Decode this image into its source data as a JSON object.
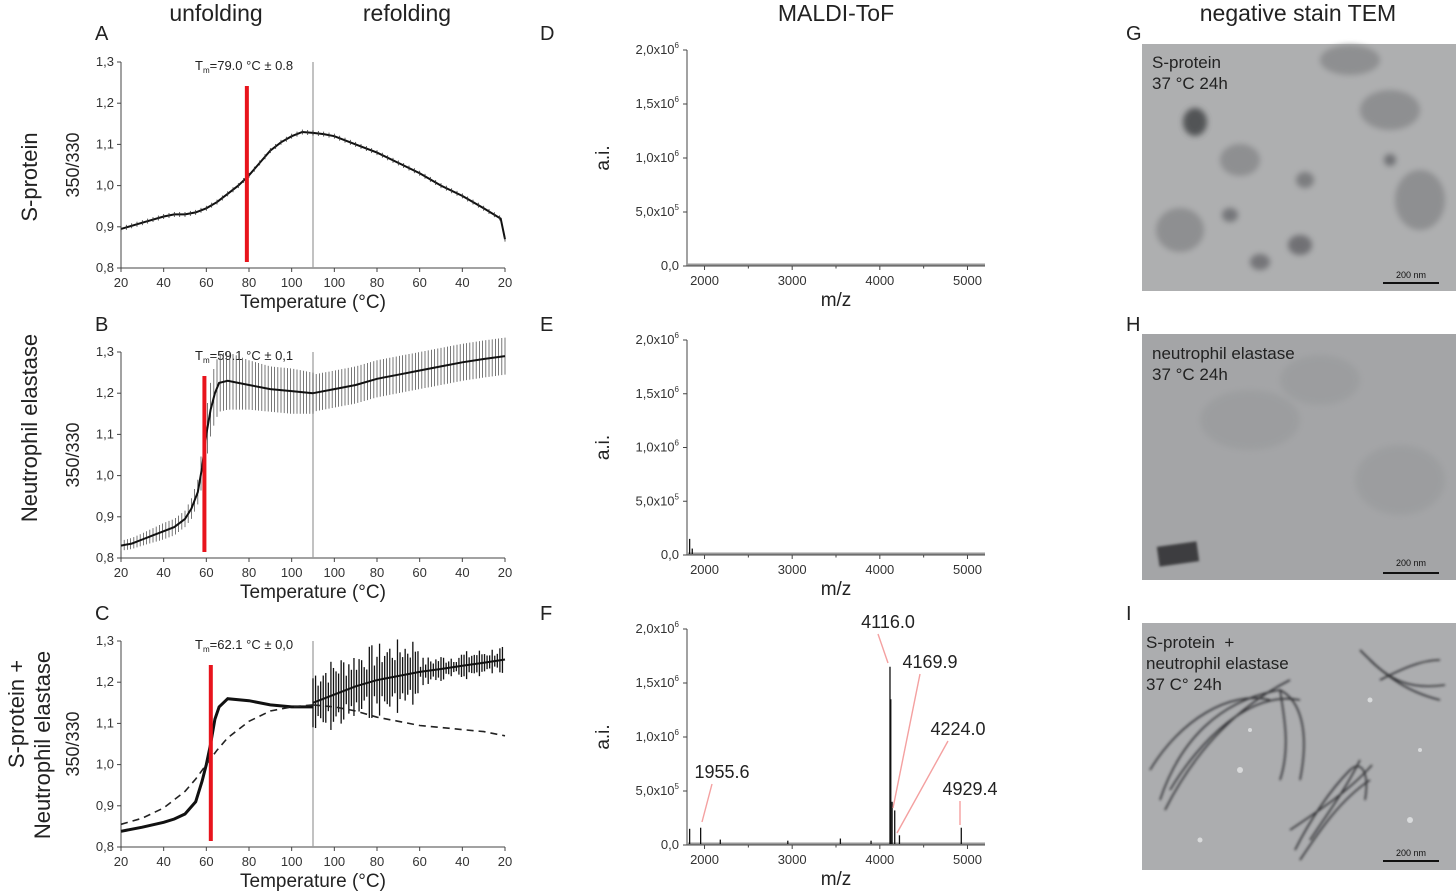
{
  "headers": {
    "unfolding": "unfolding",
    "refolding": "refolding",
    "maldi": "MALDI-ToF",
    "tem": "negative stain TEM"
  },
  "row_labels": [
    "S-protein",
    "Neutrophil elastase",
    "S-protein +",
    "Neutrophil elastase"
  ],
  "panel_letters": [
    "A",
    "B",
    "C",
    "D",
    "E",
    "F",
    "G",
    "H",
    "I"
  ],
  "colors": {
    "tm_line": "#e8141c",
    "trace": "#111111",
    "peak_line": "#f4a0a0",
    "divider": "#9a9a9a"
  },
  "chart_data": [
    {
      "panel": "A",
      "type": "line",
      "ylabel": "350/330",
      "xlabel": "Temperature (°C)",
      "ylim": [
        0.8,
        1.3
      ],
      "yticks": [
        "0,8",
        "0,9",
        "1,0",
        "1,1",
        "1,2",
        "1,3"
      ],
      "xticks": [
        "20",
        "40",
        "60",
        "80",
        "100",
        "100",
        "80",
        "60",
        "40",
        "20"
      ],
      "tm_label_main": "T",
      "tm_label_sub": "m",
      "tm_label_rest": "=79.0  °C ± 0.8",
      "tm": 79.0,
      "unfolding": {
        "x": [
          20,
          30,
          40,
          45,
          50,
          55,
          60,
          65,
          70,
          75,
          80,
          85,
          90,
          95,
          100,
          105,
          110
        ],
        "y": [
          0.895,
          0.91,
          0.925,
          0.93,
          0.93,
          0.935,
          0.945,
          0.96,
          0.98,
          1.0,
          1.025,
          1.055,
          1.085,
          1.105,
          1.12,
          1.13,
          1.128
        ]
      },
      "refolding": {
        "x": [
          110,
          105,
          100,
          90,
          80,
          70,
          60,
          50,
          40,
          30,
          22,
          20
        ],
        "y": [
          1.128,
          1.125,
          1.12,
          1.1,
          1.08,
          1.055,
          1.03,
          1.0,
          0.975,
          0.945,
          0.92,
          0.87
        ]
      },
      "error": 0.006
    },
    {
      "panel": "B",
      "type": "line",
      "ylabel": "350/330",
      "xlabel": "Temperature (°C)",
      "ylim": [
        0.8,
        1.3
      ],
      "yticks": [
        "0,8",
        "0,9",
        "1,0",
        "1,1",
        "1,2",
        "1,3"
      ],
      "xticks": [
        "20",
        "40",
        "60",
        "80",
        "100",
        "100",
        "80",
        "60",
        "40",
        "20"
      ],
      "tm_label_main": "T",
      "tm_label_sub": "m",
      "tm_label_rest": "=59.1  °C ± 0,1",
      "tm": 59.1,
      "unfolding": {
        "x": [
          20,
          25,
          30,
          35,
          40,
          45,
          50,
          53,
          56,
          58,
          60,
          62,
          64,
          66,
          70,
          80,
          90,
          100,
          110
        ],
        "y": [
          0.83,
          0.835,
          0.845,
          0.855,
          0.865,
          0.875,
          0.895,
          0.92,
          0.96,
          1.02,
          1.1,
          1.16,
          1.2,
          1.225,
          1.23,
          1.22,
          1.21,
          1.205,
          1.2
        ]
      },
      "unfolding_error": {
        "x": [
          20,
          30,
          40,
          50,
          56,
          60,
          64,
          70,
          80,
          90,
          100,
          110
        ],
        "e": [
          0.012,
          0.015,
          0.02,
          0.02,
          0.03,
          0.06,
          0.07,
          0.07,
          0.06,
          0.055,
          0.055,
          0.05
        ]
      },
      "refolding": {
        "x": [
          110,
          100,
          90,
          80,
          70,
          60,
          50,
          40,
          30,
          20
        ],
        "y": [
          1.2,
          1.21,
          1.22,
          1.235,
          1.245,
          1.255,
          1.265,
          1.275,
          1.283,
          1.29
        ]
      },
      "refolding_error": 0.045
    },
    {
      "panel": "C",
      "type": "line",
      "ylabel": "350/330",
      "xlabel": "Temperature (°C)",
      "ylim": [
        0.8,
        1.3
      ],
      "yticks": [
        "0,8",
        "0,9",
        "1,0",
        "1,1",
        "1,2",
        "1,3"
      ],
      "xticks": [
        "20",
        "40",
        "60",
        "80",
        "100",
        "100",
        "80",
        "60",
        "40",
        "20"
      ],
      "tm_label_main": "T",
      "tm_label_sub": "m",
      "tm_label_rest": "=62.1  °C ± 0,0",
      "tm": 62.1,
      "unfolding": {
        "x": [
          20,
          30,
          40,
          45,
          50,
          55,
          58,
          60,
          62,
          64,
          66,
          68,
          70,
          80,
          90,
          100,
          110
        ],
        "y": [
          0.838,
          0.848,
          0.86,
          0.868,
          0.88,
          0.91,
          0.96,
          1.0,
          1.05,
          1.11,
          1.14,
          1.15,
          1.16,
          1.155,
          1.145,
          1.14,
          1.14
        ]
      },
      "refolding": {
        "x": [
          110,
          100,
          90,
          80,
          70,
          60,
          50,
          40,
          30,
          20
        ],
        "y": [
          1.15,
          1.17,
          1.19,
          1.205,
          1.215,
          1.225,
          1.232,
          1.24,
          1.247,
          1.255
        ]
      },
      "dashed_unfolding": {
        "x": [
          20,
          30,
          40,
          50,
          55,
          60,
          65,
          70,
          80,
          90,
          100,
          110
        ],
        "y": [
          0.855,
          0.87,
          0.895,
          0.935,
          0.965,
          1.0,
          1.035,
          1.065,
          1.105,
          1.13,
          1.14,
          1.145
        ]
      },
      "dashed_refolding": {
        "x": [
          110,
          100,
          90,
          80,
          70,
          60,
          50,
          40,
          30,
          20
        ],
        "y": [
          1.145,
          1.14,
          1.13,
          1.115,
          1.105,
          1.095,
          1.09,
          1.085,
          1.08,
          1.07
        ]
      }
    },
    {
      "panel": "D",
      "type": "line",
      "ylabel": "a.i.",
      "xlabel": "m/z",
      "xlim": [
        1800,
        5200
      ],
      "ylim": [
        0,
        2000000
      ],
      "xticks": [
        2000,
        3000,
        4000,
        5000
      ],
      "yticks": [
        0,
        500000,
        1000000,
        1500000,
        2000000
      ],
      "ytick_mantissa": [
        "0,0",
        "5,0x10",
        "1,0x10",
        "1,5x10",
        "2,0x10"
      ],
      "ytick_exp": [
        "",
        "5",
        "6",
        "6",
        "6"
      ],
      "peaks": [],
      "peak_labels": []
    },
    {
      "panel": "E",
      "type": "line",
      "ylabel": "a.i.",
      "xlabel": "m/z",
      "xlim": [
        1800,
        5200
      ],
      "ylim": [
        0,
        2000000
      ],
      "xticks": [
        2000,
        3000,
        4000,
        5000
      ],
      "yticks": [
        0,
        500000,
        1000000,
        1500000,
        2000000
      ],
      "ytick_mantissa": [
        "0,0",
        "5,0x10",
        "1,0x10",
        "1,5x10",
        "2,0x10"
      ],
      "ytick_exp": [
        "",
        "5",
        "6",
        "6",
        "6"
      ],
      "peaks": [
        {
          "x": 1830,
          "y": 150000
        },
        {
          "x": 1860,
          "y": 60000
        }
      ],
      "peak_labels": []
    },
    {
      "panel": "F",
      "type": "line",
      "ylabel": "a.i.",
      "xlabel": "m/z",
      "xlim": [
        1800,
        5200
      ],
      "ylim": [
        0,
        2000000
      ],
      "xticks": [
        2000,
        3000,
        4000,
        5000
      ],
      "yticks": [
        0,
        500000,
        1000000,
        1500000,
        2000000
      ],
      "ytick_mantissa": [
        "0,0",
        "5,0x10",
        "1,0x10",
        "1,5x10",
        "2,0x10"
      ],
      "ytick_exp": [
        "",
        "5",
        "6",
        "6",
        "6"
      ],
      "peaks": [
        {
          "x": 1830,
          "y": 150000
        },
        {
          "x": 1955.6,
          "y": 160000
        },
        {
          "x": 2180,
          "y": 50000
        },
        {
          "x": 2950,
          "y": 40000
        },
        {
          "x": 3550,
          "y": 60000
        },
        {
          "x": 3900,
          "y": 40000
        },
        {
          "x": 4116.0,
          "y": 1650000
        },
        {
          "x": 4125,
          "y": 1350000
        },
        {
          "x": 4140,
          "y": 400000
        },
        {
          "x": 4169.9,
          "y": 320000
        },
        {
          "x": 4224.0,
          "y": 90000
        },
        {
          "x": 4929.4,
          "y": 160000
        }
      ],
      "peak_labels": [
        {
          "text": "1955.6",
          "x": 1955.6,
          "y": 160000
        },
        {
          "text": "4116.0",
          "x": 4116.0,
          "y": 1650000
        },
        {
          "text": "4169.9",
          "x": 4169.9,
          "y": 320000
        },
        {
          "text": "4224.0",
          "x": 4224.0,
          "y": 90000
        },
        {
          "text": "4929.4",
          "x": 4929.4,
          "y": 160000
        }
      ]
    }
  ],
  "tem_panels": [
    {
      "panel": "G",
      "label": "S-protein\n37 °C 24h",
      "scale": "200 nm"
    },
    {
      "panel": "H",
      "label": "neutrophil elastase\n37 °C 24h",
      "scale": "200 nm"
    },
    {
      "panel": "I",
      "label": "S-protein  +\nneutrophil elastase\n37 C° 24h",
      "scale": "200 nm"
    }
  ]
}
